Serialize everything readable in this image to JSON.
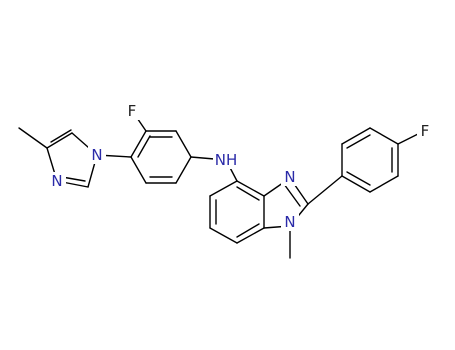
{
  "atom_labels": [
    "N",
    "N",
    "F",
    "NH",
    "N",
    "N",
    "F"
  ]
}
